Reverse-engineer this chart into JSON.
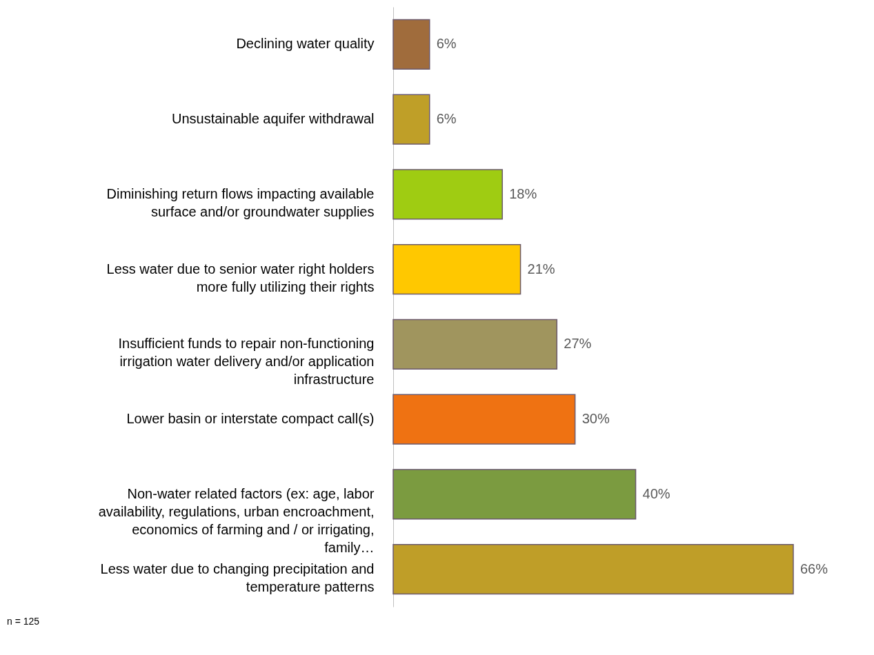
{
  "chart_data": {
    "type": "bar",
    "orientation": "horizontal",
    "categories": [
      "Declining water quality",
      "Unsustainable aquifer withdrawal",
      "Diminishing return flows impacting available surface and/or groundwater supplies",
      "Less water due to senior water right holders more fully utilizing their rights",
      "Insufficient funds to repair non-functioning irrigation water delivery and/or application infrastructure",
      "Lower basin or interstate compact call(s)",
      "Non-water related factors (ex: age, labor availability, regulations, urban encroachment, economics of farming and / or irrigating, family…",
      "Less water due to changing precipitation and temperature patterns"
    ],
    "values": [
      6,
      6,
      18,
      21,
      27,
      30,
      40,
      66
    ],
    "colors": [
      "#a06c3c",
      "#bf9f28",
      "#9fcc12",
      "#ffc800",
      "#a0955e",
      "#ef7212",
      "#7b9b40",
      "#bf9e28"
    ],
    "value_labels": [
      "6%",
      "6%",
      "18%",
      "21%",
      "27%",
      "30%",
      "40%",
      "66%"
    ],
    "grid": false,
    "legend": false,
    "annotations": [
      "n = 125"
    ]
  }
}
